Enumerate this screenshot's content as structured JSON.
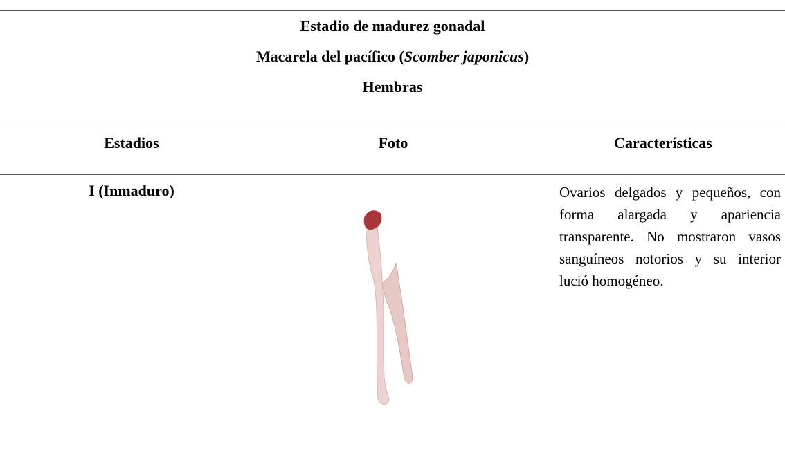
{
  "header": {
    "title": "Estadio de madurez gonadal",
    "subtitle": {
      "before": "Macarela del pacífico (",
      "species": "Scomber japonicus",
      "after": ")"
    },
    "group": "Hembras"
  },
  "table": {
    "columns": [
      "Estadios",
      "Foto",
      "Características"
    ],
    "rows": [
      {
        "stage": "I (Inmaduro)",
        "description": "Ovarios delgados y pequeños, con forma alargada y apariencia transparente. No mostraron vasos sanguíneos notorios y su interior lució homogéneo."
      }
    ]
  }
}
